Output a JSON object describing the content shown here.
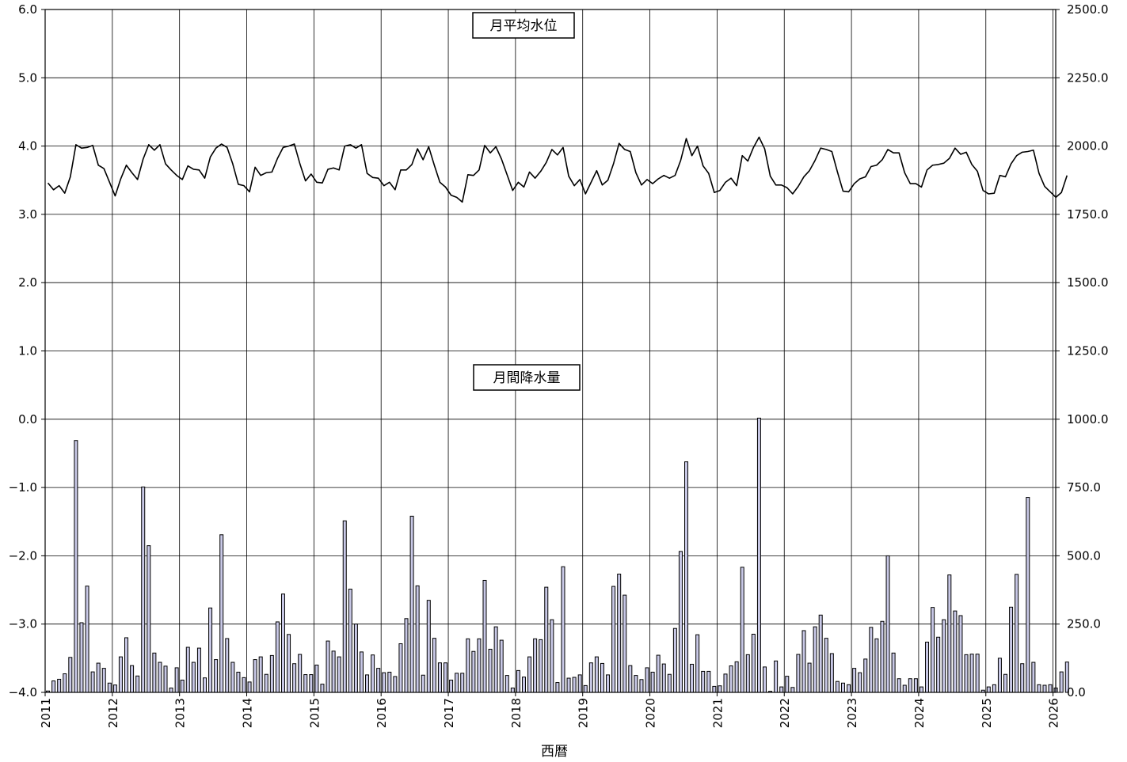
{
  "chart_data": {
    "type": "bar+line",
    "xlabel": "西暦",
    "x_ticks": [
      "2011",
      "2012",
      "2013",
      "2014",
      "2015",
      "2016",
      "2017",
      "2018",
      "2019",
      "2020",
      "2021",
      "2022",
      "2023",
      "2024",
      "2025",
      "2026"
    ],
    "y_left": {
      "ylim": [
        -4.0,
        6.0
      ],
      "ticks": [
        "6.0",
        "5.0",
        "4.0",
        "3.0",
        "2.0",
        "1.0",
        "0.0",
        "−1.0",
        "−2.0",
        "−3.0",
        "−4.0"
      ]
    },
    "y_right": {
      "ylim": [
        0.0,
        2500.0
      ],
      "ticks": [
        "2500.0",
        "2250.0",
        "2000.0",
        "1750.0",
        "1500.0",
        "1250.0",
        "1000.0",
        "750.0",
        "500.0",
        "250.0",
        "0.0"
      ]
    },
    "grid": true,
    "start": "2011-01",
    "series": [
      {
        "name": "月平均水位",
        "kind": "line",
        "axis": "left",
        "values": [
          3.46,
          3.36,
          3.42,
          3.31,
          3.55,
          4.02,
          3.97,
          3.98,
          4.01,
          3.72,
          3.67,
          3.47,
          3.27,
          3.52,
          3.72,
          3.61,
          3.51,
          3.81,
          4.02,
          3.94,
          4.02,
          3.74,
          3.65,
          3.57,
          3.51,
          3.71,
          3.66,
          3.65,
          3.53,
          3.84,
          3.97,
          4.03,
          3.98,
          3.74,
          3.44,
          3.42,
          3.33,
          3.69,
          3.57,
          3.61,
          3.62,
          3.82,
          3.98,
          4.0,
          4.03,
          3.74,
          3.49,
          3.59,
          3.47,
          3.46,
          3.66,
          3.68,
          3.65,
          4.0,
          4.02,
          3.97,
          4.02,
          3.6,
          3.54,
          3.53,
          3.42,
          3.47,
          3.36,
          3.65,
          3.65,
          3.73,
          3.96,
          3.8,
          3.99,
          3.72,
          3.47,
          3.4,
          3.28,
          3.25,
          3.18,
          3.58,
          3.57,
          3.65,
          4.01,
          3.9,
          3.99,
          3.81,
          3.58,
          3.35,
          3.47,
          3.4,
          3.62,
          3.53,
          3.63,
          3.76,
          3.95,
          3.87,
          3.98,
          3.56,
          3.42,
          3.51,
          3.3,
          3.47,
          3.64,
          3.43,
          3.5,
          3.74,
          4.04,
          3.95,
          3.92,
          3.61,
          3.43,
          3.51,
          3.45,
          3.52,
          3.57,
          3.53,
          3.57,
          3.79,
          4.11,
          3.86,
          4.0,
          3.71,
          3.6,
          3.32,
          3.35,
          3.47,
          3.53,
          3.42,
          3.86,
          3.78,
          3.98,
          4.13,
          3.96,
          3.56,
          3.43,
          3.43,
          3.39,
          3.3,
          3.41,
          3.55,
          3.64,
          3.79,
          3.97,
          3.95,
          3.92,
          3.62,
          3.34,
          3.33,
          3.45,
          3.52,
          3.55,
          3.7,
          3.72,
          3.8,
          3.95,
          3.9,
          3.9,
          3.61,
          3.45,
          3.45,
          3.4,
          3.65,
          3.72,
          3.73,
          3.75,
          3.82,
          3.97,
          3.88,
          3.91,
          3.73,
          3.63,
          3.35,
          3.3,
          3.31,
          3.57,
          3.55,
          3.74,
          3.86,
          3.91,
          3.92,
          3.94,
          3.6,
          3.41,
          3.33,
          3.25,
          3.32,
          3.57
        ]
      },
      {
        "name": "月間降水量",
        "kind": "bar",
        "axis": "right",
        "values": [
          5,
          42,
          48,
          68,
          128,
          922,
          255,
          389,
          75,
          107,
          88,
          34,
          27,
          130,
          200,
          98,
          60,
          752,
          537,
          144,
          110,
          96,
          16,
          90,
          45,
          165,
          110,
          162,
          53,
          309,
          120,
          577,
          197,
          110,
          74,
          54,
          38,
          120,
          130,
          66,
          135,
          258,
          360,
          212,
          105,
          139,
          65,
          65,
          100,
          30,
          188,
          151,
          130,
          628,
          378,
          250,
          148,
          64,
          137,
          88,
          72,
          74,
          58,
          178,
          270,
          645,
          390,
          63,
          337,
          198,
          108,
          108,
          45,
          70,
          70,
          196,
          150,
          196,
          410,
          158,
          240,
          191,
          62,
          16,
          80,
          56,
          130,
          196,
          193,
          385,
          266,
          36,
          460,
          52,
          55,
          64,
          25,
          108,
          130,
          106,
          64,
          388,
          433,
          356,
          98,
          62,
          47,
          90,
          74,
          136,
          104,
          66,
          234,
          516,
          844,
          103,
          211,
          77,
          77,
          22,
          24,
          67,
          97,
          112,
          458,
          138,
          213,
          1004,
          93,
          4,
          115,
          20,
          59,
          18,
          139,
          226,
          107,
          240,
          283,
          198,
          142,
          40,
          34,
          28,
          88,
          72,
          122,
          238,
          196,
          260,
          500,
          144,
          50,
          26,
          50,
          50,
          20,
          184,
          311,
          202,
          266,
          430,
          298,
          281,
          138,
          140,
          140,
          8,
          20,
          28,
          125,
          66,
          312,
          432,
          105,
          714,
          110,
          28,
          26,
          28,
          16,
          75,
          111
        ]
      }
    ]
  }
}
